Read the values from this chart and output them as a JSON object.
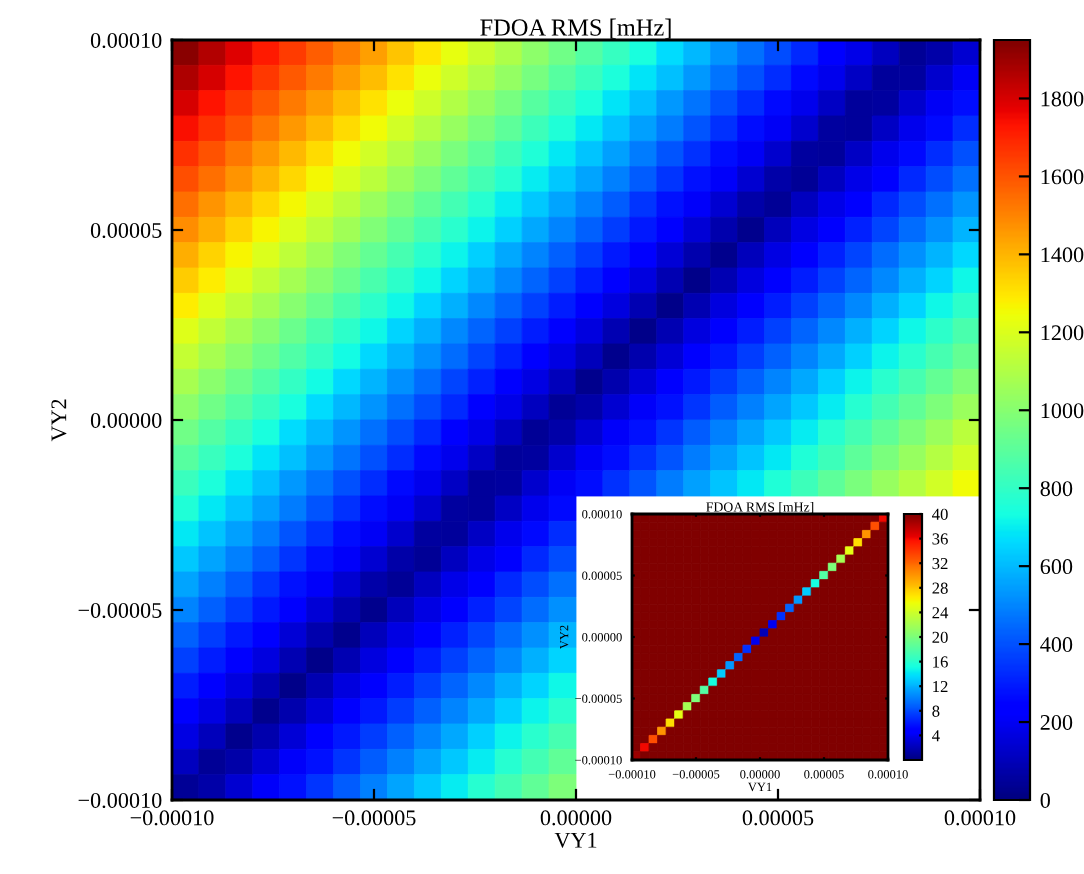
{
  "chart_data": [
    {
      "type": "heatmap",
      "title": "FDOA RMS [mHz]",
      "xlabel": "VY1",
      "ylabel": "VY2",
      "xlim": [
        -0.0001,
        0.0001
      ],
      "ylim": [
        -0.0001,
        0.0001
      ],
      "xticks": [
        {
          "value": -0.0001,
          "label": "−0.00010"
        },
        {
          "value": -5e-05,
          "label": "−0.00005"
        },
        {
          "value": 0,
          "label": "0.00000"
        },
        {
          "value": 5e-05,
          "label": "0.00005"
        },
        {
          "value": 0.0001,
          "label": "0.00010"
        }
      ],
      "yticks": [
        {
          "value": -0.0001,
          "label": "−0.00010"
        },
        {
          "value": -5e-05,
          "label": "−0.00005"
        },
        {
          "value": 0,
          "label": "0.00000"
        },
        {
          "value": 5e-05,
          "label": "0.00005"
        },
        {
          "value": 0.0001,
          "label": "0.00010"
        }
      ],
      "clim": [
        0,
        1950
      ],
      "cticks": [
        0,
        200,
        400,
        600,
        800,
        1000,
        1200,
        1400,
        1600,
        1800
      ],
      "cells": [
        [
          1930,
          1860,
          1790,
          1720,
          1650,
          1580,
          1510,
          1440,
          1370,
          1300,
          1230,
          1160,
          1090,
          1020,
          950,
          880,
          810,
          740,
          670,
          600,
          530,
          460,
          390,
          320,
          250,
          180,
          110,
          40,
          70,
          140
        ],
        [
          1870,
          1800,
          1730,
          1660,
          1590,
          1520,
          1450,
          1380,
          1310,
          1240,
          1170,
          1100,
          1030,
          960,
          890,
          820,
          750,
          680,
          610,
          540,
          470,
          400,
          330,
          260,
          190,
          120,
          50,
          60,
          130,
          200
        ],
        [
          1800,
          1730,
          1660,
          1590,
          1520,
          1450,
          1380,
          1310,
          1240,
          1170,
          1100,
          1030,
          960,
          890,
          820,
          750,
          680,
          610,
          540,
          470,
          400,
          330,
          260,
          190,
          120,
          50,
          60,
          130,
          200,
          270
        ],
        [
          1740,
          1670,
          1600,
          1530,
          1460,
          1390,
          1320,
          1250,
          1180,
          1110,
          1040,
          970,
          900,
          830,
          760,
          690,
          620,
          550,
          480,
          410,
          340,
          270,
          200,
          130,
          60,
          50,
          120,
          190,
          260,
          330
        ],
        [
          1670,
          1600,
          1530,
          1460,
          1390,
          1320,
          1250,
          1180,
          1110,
          1040,
          970,
          900,
          830,
          760,
          690,
          620,
          550,
          480,
          410,
          340,
          270,
          200,
          130,
          60,
          50,
          120,
          190,
          260,
          330,
          400
        ],
        [
          1610,
          1540,
          1470,
          1400,
          1330,
          1260,
          1190,
          1120,
          1050,
          980,
          910,
          840,
          770,
          700,
          630,
          560,
          490,
          420,
          350,
          280,
          210,
          140,
          70,
          40,
          110,
          180,
          250,
          320,
          390,
          460
        ],
        [
          1540,
          1470,
          1400,
          1330,
          1260,
          1190,
          1120,
          1050,
          980,
          910,
          840,
          770,
          700,
          630,
          560,
          490,
          420,
          350,
          280,
          210,
          140,
          70,
          40,
          110,
          180,
          250,
          320,
          390,
          460,
          530
        ],
        [
          1480,
          1410,
          1340,
          1270,
          1200,
          1130,
          1060,
          990,
          920,
          850,
          780,
          710,
          640,
          570,
          500,
          430,
          360,
          290,
          220,
          150,
          80,
          30,
          100,
          170,
          240,
          310,
          380,
          450,
          520,
          590
        ],
        [
          1410,
          1340,
          1270,
          1200,
          1130,
          1060,
          990,
          920,
          850,
          780,
          710,
          640,
          570,
          500,
          430,
          360,
          290,
          220,
          150,
          80,
          30,
          100,
          170,
          240,
          310,
          380,
          450,
          520,
          590,
          660
        ],
        [
          1350,
          1280,
          1210,
          1140,
          1070,
          1000,
          930,
          860,
          790,
          720,
          650,
          580,
          510,
          440,
          370,
          300,
          230,
          160,
          90,
          20,
          90,
          160,
          230,
          300,
          370,
          440,
          510,
          580,
          650,
          720
        ],
        [
          1280,
          1210,
          1140,
          1070,
          1000,
          930,
          860,
          790,
          720,
          650,
          580,
          510,
          440,
          370,
          300,
          230,
          160,
          90,
          20,
          90,
          160,
          230,
          300,
          370,
          440,
          510,
          580,
          650,
          720,
          790
        ],
        [
          1210,
          1140,
          1070,
          1000,
          930,
          860,
          790,
          720,
          650,
          580,
          510,
          440,
          370,
          300,
          230,
          160,
          90,
          20,
          90,
          160,
          230,
          300,
          370,
          440,
          510,
          580,
          650,
          720,
          790,
          860
        ],
        [
          1150,
          1080,
          1010,
          940,
          870,
          800,
          730,
          660,
          590,
          520,
          450,
          380,
          310,
          240,
          170,
          100,
          30,
          80,
          150,
          220,
          290,
          360,
          430,
          500,
          570,
          640,
          710,
          780,
          850,
          920
        ],
        [
          1080,
          1010,
          940,
          870,
          800,
          730,
          660,
          590,
          520,
          450,
          380,
          310,
          240,
          170,
          100,
          30,
          80,
          150,
          220,
          290,
          360,
          430,
          500,
          570,
          640,
          710,
          780,
          850,
          920,
          990
        ],
        [
          1020,
          950,
          880,
          810,
          740,
          670,
          600,
          530,
          460,
          390,
          320,
          250,
          180,
          110,
          40,
          70,
          140,
          210,
          280,
          350,
          420,
          490,
          560,
          630,
          700,
          770,
          840,
          910,
          980,
          1050
        ],
        [
          950,
          880,
          810,
          740,
          670,
          600,
          530,
          460,
          390,
          320,
          250,
          180,
          110,
          40,
          70,
          140,
          210,
          280,
          350,
          420,
          490,
          560,
          630,
          700,
          770,
          840,
          910,
          980,
          1050,
          1120
        ],
        [
          890,
          820,
          750,
          680,
          610,
          540,
          470,
          400,
          330,
          260,
          190,
          120,
          50,
          60,
          130,
          200,
          270,
          340,
          410,
          480,
          550,
          620,
          690,
          760,
          830,
          900,
          970,
          1040,
          1110,
          1180
        ],
        [
          820,
          750,
          680,
          610,
          540,
          470,
          400,
          330,
          260,
          190,
          120,
          50,
          60,
          130,
          200,
          270,
          340,
          410,
          480,
          550,
          620,
          690,
          760,
          830,
          900,
          970,
          1040,
          1110,
          1180,
          1250
        ],
        [
          760,
          690,
          620,
          550,
          480,
          410,
          340,
          270,
          200,
          130,
          60,
          50,
          120,
          190,
          260,
          null,
          null,
          null,
          null,
          null,
          null,
          null,
          null,
          null,
          null,
          null,
          null,
          null,
          null,
          null
        ],
        [
          690,
          620,
          550,
          480,
          410,
          340,
          270,
          200,
          130,
          60,
          50,
          120,
          190,
          260,
          330,
          null,
          null,
          null,
          null,
          null,
          null,
          null,
          null,
          null,
          null,
          null,
          null,
          null,
          null,
          null
        ],
        [
          630,
          560,
          490,
          420,
          350,
          280,
          210,
          140,
          70,
          40,
          110,
          180,
          250,
          320,
          390,
          null,
          null,
          null,
          null,
          null,
          null,
          null,
          null,
          null,
          null,
          null,
          null,
          null,
          null,
          null
        ],
        [
          560,
          490,
          420,
          350,
          280,
          210,
          140,
          70,
          40,
          110,
          180,
          250,
          320,
          390,
          460,
          null,
          null,
          null,
          null,
          null,
          null,
          null,
          null,
          null,
          null,
          null,
          null,
          null,
          null,
          null
        ],
        [
          500,
          430,
          360,
          290,
          220,
          150,
          80,
          30,
          100,
          170,
          240,
          310,
          380,
          450,
          520,
          null,
          null,
          null,
          null,
          null,
          null,
          null,
          null,
          null,
          null,
          null,
          null,
          null,
          null,
          null
        ],
        [
          430,
          360,
          290,
          220,
          150,
          80,
          30,
          100,
          170,
          240,
          310,
          380,
          450,
          520,
          590,
          null,
          null,
          null,
          null,
          null,
          null,
          null,
          null,
          null,
          null,
          null,
          null,
          null,
          null,
          null
        ],
        [
          370,
          300,
          230,
          160,
          90,
          20,
          90,
          160,
          230,
          300,
          370,
          440,
          510,
          580,
          650,
          null,
          null,
          null,
          null,
          null,
          null,
          null,
          null,
          null,
          null,
          null,
          null,
          null,
          null,
          null
        ],
        [
          300,
          230,
          160,
          90,
          20,
          90,
          160,
          230,
          300,
          370,
          440,
          510,
          580,
          650,
          720,
          null,
          null,
          null,
          null,
          null,
          null,
          null,
          null,
          null,
          null,
          null,
          null,
          null,
          null,
          null
        ],
        [
          240,
          170,
          100,
          30,
          80,
          150,
          220,
          290,
          360,
          430,
          500,
          570,
          640,
          710,
          780,
          null,
          null,
          null,
          null,
          null,
          null,
          null,
          null,
          null,
          null,
          null,
          null,
          null,
          null,
          null
        ],
        [
          170,
          100,
          30,
          80,
          150,
          220,
          290,
          360,
          430,
          500,
          570,
          640,
          710,
          780,
          850,
          null,
          null,
          null,
          null,
          null,
          null,
          null,
          null,
          null,
          null,
          null,
          null,
          null,
          null,
          null
        ],
        [
          110,
          40,
          70,
          140,
          210,
          280,
          350,
          420,
          490,
          560,
          630,
          700,
          770,
          840,
          910,
          null,
          null,
          null,
          null,
          null,
          null,
          null,
          null,
          null,
          null,
          null,
          null,
          null,
          null,
          null
        ],
        [
          40,
          70,
          140,
          210,
          280,
          350,
          420,
          490,
          560,
          630,
          700,
          770,
          840,
          910,
          980,
          null,
          null,
          null,
          null,
          null,
          null,
          null,
          null,
          null,
          null,
          null,
          null,
          null,
          null,
          null
        ]
      ]
    },
    {
      "type": "heatmap",
      "title": "FDOA RMS [mHz]",
      "xlabel": "VY1",
      "ylabel": "VY2",
      "xlim": [
        -0.0001,
        0.0001
      ],
      "ylim": [
        -0.0001,
        0.0001
      ],
      "xticks": [
        {
          "value": -0.0001,
          "label": "−0.00010"
        },
        {
          "value": -5e-05,
          "label": "−0.00005"
        },
        {
          "value": 0,
          "label": "0.00000"
        },
        {
          "value": 5e-05,
          "label": "0.00005"
        },
        {
          "value": 0.0001,
          "label": "0.00010"
        }
      ],
      "yticks": [
        {
          "value": -0.0001,
          "label": "−0.00010"
        },
        {
          "value": -5e-05,
          "label": "−0.00005"
        },
        {
          "value": 0,
          "label": "0.00000"
        },
        {
          "value": 5e-05,
          "label": "0.00005"
        },
        {
          "value": 0.0001,
          "label": "0.00010"
        }
      ],
      "clim": [
        0,
        40
      ],
      "cticks": [
        4,
        8,
        12,
        16,
        20,
        24,
        28,
        32,
        36,
        40
      ],
      "cells": [
        [
          40,
          40,
          40,
          40,
          40,
          40,
          40,
          40,
          40,
          40,
          40,
          40,
          40,
          40,
          40,
          40,
          40,
          40,
          40,
          40,
          40,
          40,
          40,
          40,
          40,
          40,
          40,
          40,
          40,
          36
        ],
        [
          40,
          40,
          40,
          40,
          40,
          40,
          40,
          40,
          40,
          40,
          40,
          40,
          40,
          40,
          40,
          40,
          40,
          40,
          40,
          40,
          40,
          40,
          40,
          40,
          40,
          40,
          40,
          40,
          33,
          40
        ],
        [
          40,
          40,
          40,
          40,
          40,
          40,
          40,
          40,
          40,
          40,
          40,
          40,
          40,
          40,
          40,
          40,
          40,
          40,
          40,
          40,
          40,
          40,
          40,
          40,
          40,
          40,
          40,
          30,
          40,
          40
        ],
        [
          40,
          40,
          40,
          40,
          40,
          40,
          40,
          40,
          40,
          40,
          40,
          40,
          40,
          40,
          40,
          40,
          40,
          40,
          40,
          40,
          40,
          40,
          40,
          40,
          40,
          40,
          27,
          40,
          40,
          40
        ],
        [
          40,
          40,
          40,
          40,
          40,
          40,
          40,
          40,
          40,
          40,
          40,
          40,
          40,
          40,
          40,
          40,
          40,
          40,
          40,
          40,
          40,
          40,
          40,
          40,
          40,
          25,
          40,
          40,
          40,
          40
        ],
        [
          40,
          40,
          40,
          40,
          40,
          40,
          40,
          40,
          40,
          40,
          40,
          40,
          40,
          40,
          40,
          40,
          40,
          40,
          40,
          40,
          40,
          40,
          40,
          40,
          22,
          40,
          40,
          40,
          40,
          40
        ],
        [
          40,
          40,
          40,
          40,
          40,
          40,
          40,
          40,
          40,
          40,
          40,
          40,
          40,
          40,
          40,
          40,
          40,
          40,
          40,
          40,
          40,
          40,
          40,
          20,
          40,
          40,
          40,
          40,
          40,
          40
        ],
        [
          40,
          40,
          40,
          40,
          40,
          40,
          40,
          40,
          40,
          40,
          40,
          40,
          40,
          40,
          40,
          40,
          40,
          40,
          40,
          40,
          40,
          40,
          18,
          40,
          40,
          40,
          40,
          40,
          40,
          40
        ],
        [
          40,
          40,
          40,
          40,
          40,
          40,
          40,
          40,
          40,
          40,
          40,
          40,
          40,
          40,
          40,
          40,
          40,
          40,
          40,
          40,
          40,
          15,
          40,
          40,
          40,
          40,
          40,
          40,
          40,
          40
        ],
        [
          40,
          40,
          40,
          40,
          40,
          40,
          40,
          40,
          40,
          40,
          40,
          40,
          40,
          40,
          40,
          40,
          40,
          40,
          40,
          40,
          13,
          40,
          40,
          40,
          40,
          40,
          40,
          40,
          40,
          40
        ],
        [
          40,
          40,
          40,
          40,
          40,
          40,
          40,
          40,
          40,
          40,
          40,
          40,
          40,
          40,
          40,
          40,
          40,
          40,
          40,
          11,
          40,
          40,
          40,
          40,
          40,
          40,
          40,
          40,
          40,
          40
        ],
        [
          40,
          40,
          40,
          40,
          40,
          40,
          40,
          40,
          40,
          40,
          40,
          40,
          40,
          40,
          40,
          40,
          40,
          40,
          9,
          40,
          40,
          40,
          40,
          40,
          40,
          40,
          40,
          40,
          40,
          40
        ],
        [
          40,
          40,
          40,
          40,
          40,
          40,
          40,
          40,
          40,
          40,
          40,
          40,
          40,
          40,
          40,
          40,
          40,
          7,
          40,
          40,
          40,
          40,
          40,
          40,
          40,
          40,
          40,
          40,
          40,
          40
        ],
        [
          40,
          40,
          40,
          40,
          40,
          40,
          40,
          40,
          40,
          40,
          40,
          40,
          40,
          40,
          40,
          40,
          4,
          40,
          40,
          40,
          40,
          40,
          40,
          40,
          40,
          40,
          40,
          40,
          40,
          40
        ],
        [
          40,
          40,
          40,
          40,
          40,
          40,
          40,
          40,
          40,
          40,
          40,
          40,
          40,
          40,
          40,
          2,
          40,
          40,
          40,
          40,
          40,
          40,
          40,
          40,
          40,
          40,
          40,
          40,
          40,
          40
        ],
        [
          40,
          40,
          40,
          40,
          40,
          40,
          40,
          40,
          40,
          40,
          40,
          40,
          40,
          40,
          4,
          40,
          40,
          40,
          40,
          40,
          40,
          40,
          40,
          40,
          40,
          40,
          40,
          40,
          40,
          40
        ],
        [
          40,
          40,
          40,
          40,
          40,
          40,
          40,
          40,
          40,
          40,
          40,
          40,
          40,
          7,
          40,
          40,
          40,
          40,
          40,
          40,
          40,
          40,
          40,
          40,
          40,
          40,
          40,
          40,
          40,
          40
        ],
        [
          40,
          40,
          40,
          40,
          40,
          40,
          40,
          40,
          40,
          40,
          40,
          40,
          9,
          40,
          40,
          40,
          40,
          40,
          40,
          40,
          40,
          40,
          40,
          40,
          40,
          40,
          40,
          40,
          40,
          40
        ],
        [
          40,
          40,
          40,
          40,
          40,
          40,
          40,
          40,
          40,
          40,
          40,
          11,
          40,
          40,
          40,
          40,
          40,
          40,
          40,
          40,
          40,
          40,
          40,
          40,
          40,
          40,
          40,
          40,
          40,
          40
        ],
        [
          40,
          40,
          40,
          40,
          40,
          40,
          40,
          40,
          40,
          40,
          13,
          40,
          40,
          40,
          40,
          40,
          40,
          40,
          40,
          40,
          40,
          40,
          40,
          40,
          40,
          40,
          40,
          40,
          40,
          40
        ],
        [
          40,
          40,
          40,
          40,
          40,
          40,
          40,
          40,
          40,
          15,
          40,
          40,
          40,
          40,
          40,
          40,
          40,
          40,
          40,
          40,
          40,
          40,
          40,
          40,
          40,
          40,
          40,
          40,
          40,
          40
        ],
        [
          40,
          40,
          40,
          40,
          40,
          40,
          40,
          40,
          18,
          40,
          40,
          40,
          40,
          40,
          40,
          40,
          40,
          40,
          40,
          40,
          40,
          40,
          40,
          40,
          40,
          40,
          40,
          40,
          40,
          40
        ],
        [
          40,
          40,
          40,
          40,
          40,
          40,
          40,
          20,
          40,
          40,
          40,
          40,
          40,
          40,
          40,
          40,
          40,
          40,
          40,
          40,
          40,
          40,
          40,
          40,
          40,
          40,
          40,
          40,
          40,
          40
        ],
        [
          40,
          40,
          40,
          40,
          40,
          40,
          22,
          40,
          40,
          40,
          40,
          40,
          40,
          40,
          40,
          40,
          40,
          40,
          40,
          40,
          40,
          40,
          40,
          40,
          40,
          40,
          40,
          40,
          40,
          40
        ],
        [
          40,
          40,
          40,
          40,
          40,
          25,
          40,
          40,
          40,
          40,
          40,
          40,
          40,
          40,
          40,
          40,
          40,
          40,
          40,
          40,
          40,
          40,
          40,
          40,
          40,
          40,
          40,
          40,
          40,
          40
        ],
        [
          40,
          40,
          40,
          40,
          27,
          40,
          40,
          40,
          40,
          40,
          40,
          40,
          40,
          40,
          40,
          40,
          40,
          40,
          40,
          40,
          40,
          40,
          40,
          40,
          40,
          40,
          40,
          40,
          40,
          40
        ],
        [
          40,
          40,
          40,
          30,
          40,
          40,
          40,
          40,
          40,
          40,
          40,
          40,
          40,
          40,
          40,
          40,
          40,
          40,
          40,
          40,
          40,
          40,
          40,
          40,
          40,
          40,
          40,
          40,
          40,
          40
        ],
        [
          40,
          40,
          33,
          40,
          40,
          40,
          40,
          40,
          40,
          40,
          40,
          40,
          40,
          40,
          40,
          40,
          40,
          40,
          40,
          40,
          40,
          40,
          40,
          40,
          40,
          40,
          40,
          40,
          40,
          40
        ],
        [
          40,
          36,
          40,
          40,
          40,
          40,
          40,
          40,
          40,
          40,
          40,
          40,
          40,
          40,
          40,
          40,
          40,
          40,
          40,
          40,
          40,
          40,
          40,
          40,
          40,
          40,
          40,
          40,
          40,
          40
        ],
        [
          39,
          40,
          40,
          40,
          40,
          40,
          40,
          40,
          40,
          40,
          40,
          40,
          40,
          40,
          40,
          40,
          40,
          40,
          40,
          40,
          40,
          40,
          40,
          40,
          40,
          40,
          40,
          40,
          40,
          40
        ]
      ]
    }
  ]
}
